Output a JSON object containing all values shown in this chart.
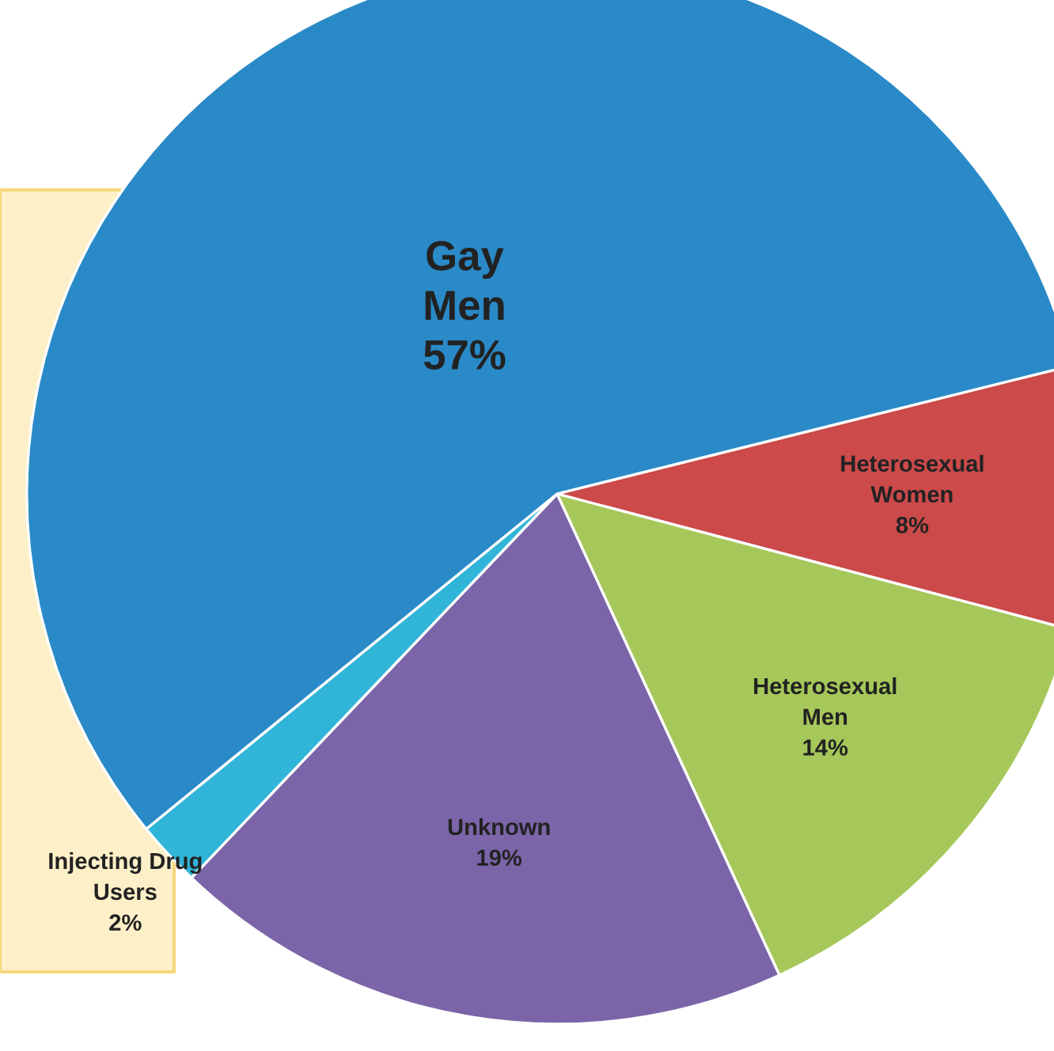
{
  "chart_data": {
    "type": "pie",
    "categories": [
      "Heterosexual Women",
      "Heterosexual Men",
      "Unknown",
      "Injecting Drug Users",
      "Gay Men"
    ],
    "values": [
      8,
      14,
      19,
      2,
      57
    ],
    "colors": [
      "#cc4a4a",
      "#a6c75a",
      "#7b65a8",
      "#30b5d8",
      "#2a8ac8"
    ],
    "value_labels": [
      "8%",
      "14%",
      "19%",
      "2%",
      "57%"
    ]
  }
}
